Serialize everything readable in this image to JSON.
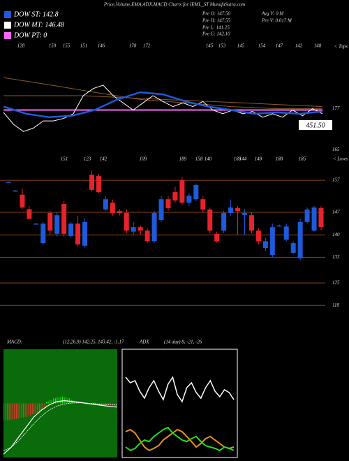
{
  "header": {
    "title": "Price,Volume,EMA,ADX,MACD Charts for IEML_ST MunafaSutra.com"
  },
  "legend": [
    {
      "label": "DOW ST: 142.8",
      "color": "#1e5adc"
    },
    {
      "label": "DOW MT: 146.48",
      "color": "#ffffff"
    },
    {
      "label": "DOW PT: 0",
      "color": "#ff66ff"
    }
  ],
  "info": [
    "Pre O: 147.50",
    "Avg V: 0 M",
    "Pre H: 147.55",
    "Pre V: 0.017 M",
    "Pre L: 141.25",
    "Pre C: 142.10"
  ],
  "chart_data": [
    {
      "type": "line",
      "annotation": "< Tops",
      "top_labels": [
        "128",
        "159",
        "155",
        "151",
        "146",
        "178",
        "172",
        "145",
        "153",
        "145",
        "154",
        "147",
        "142",
        "148"
      ],
      "value_label": "451.50",
      "ylim": [
        163.8,
        197.6
      ],
      "yticks": [
        177,
        165
      ],
      "series": [
        {
          "color": "#8b5a2b",
          "values": [
            186.1,
            184,
            181.8,
            179.7,
            178.7,
            177.6,
            177,
            177
          ]
        },
        {
          "color": "#8b5a2b",
          "values": [
            180.8,
            180.8,
            179.7,
            178.7,
            177.6
          ]
        },
        {
          "name": "DOW PT: 0",
          "color": "#ff66ff",
          "values": [
            176.6,
            176.6
          ]
        },
        {
          "name": "DOW MT: 146.48",
          "color": "#ffffff",
          "values": [
            175.9,
            172.4,
            170.3,
            171.3,
            173.4,
            173.4,
            174.1,
            175.5,
            180.8,
            182.9,
            183.9,
            180.8,
            178.7,
            176.6,
            178.7,
            180.8,
            179.1,
            177.6,
            178.7,
            177.6,
            179.1,
            176.6,
            175.5,
            176.6,
            175.5,
            176.2,
            174.5,
            175.5,
            174.5,
            176.6,
            174.9,
            177,
            175.5
          ]
        },
        {
          "name": "DOW ST: 142.8",
          "color": "#1e5adc",
          "values": [
            177.6,
            175.5,
            174.5,
            174.9,
            176.6,
            179.7,
            181.8,
            181.2,
            179.1,
            177.6,
            176.6,
            175.5,
            175.9,
            175.5,
            176.2
          ]
        }
      ]
    },
    {
      "type": "candlestick",
      "annotation": "< Lows",
      "low_labels": [
        "151",
        "123",
        "142",
        "109",
        "189",
        "158",
        "140",
        "188",
        "144",
        "148",
        "188",
        "185"
      ],
      "ylim": [
        108.7,
        164.2
      ],
      "yticks": [
        157,
        147,
        140,
        133,
        125,
        118
      ],
      "grid": true,
      "up_color": "#1e5adc",
      "down_color": "#e8222c",
      "grid_color": "#8b4513",
      "open": [
        156.5,
        153.8,
        152.5,
        148,
        143.5,
        137.4,
        146.8,
        140.3,
        149.6,
        139.6,
        143.5,
        136.6,
        158.7,
        158.3,
        147.9,
        150,
        147.4,
        146.8,
        141,
        142.4,
        141.3,
        138,
        144.6,
        151.1,
        153.3,
        157,
        150,
        151.1,
        151.1,
        147.9,
        140.3,
        141.3,
        146.8,
        148.3,
        146.2,
        146.1,
        141.3,
        135.9,
        133.7,
        142.9,
        138.5,
        134.4,
        132.7,
        144,
        141.3,
        148.3
      ],
      "high": [
        156.6,
        154,
        154.5,
        149,
        143.7,
        144,
        147.5,
        147,
        150.5,
        144,
        146,
        145,
        160,
        159,
        152,
        151,
        148,
        148,
        144,
        143,
        142,
        147.5,
        152,
        152,
        155,
        158,
        153,
        156,
        152,
        148.5,
        141,
        147.5,
        151,
        149,
        148,
        147,
        142,
        139,
        143.5,
        143.2,
        143.5,
        138,
        145,
        148.5,
        149,
        149
      ],
      "low": [
        156.3,
        153.6,
        148,
        145,
        143.3,
        137,
        140,
        139.5,
        139.5,
        139,
        136.5,
        136,
        153.5,
        153,
        147.5,
        146,
        146,
        140.5,
        140,
        140,
        137.5,
        137.5,
        144,
        147.5,
        150,
        149.5,
        149,
        150.5,
        147,
        140.5,
        137.5,
        140.5,
        146,
        140,
        140,
        140.5,
        137,
        135,
        133,
        142.6,
        138,
        134,
        132,
        143.5,
        141,
        141.5
      ],
      "close": [
        156.5,
        153.8,
        148.5,
        145,
        143.5,
        143.5,
        141.3,
        146.1,
        140.3,
        143.5,
        137,
        144,
        154,
        153.3,
        151.1,
        146.8,
        146.8,
        141.3,
        142.4,
        141.3,
        138,
        146.8,
        151.1,
        148.3,
        150.7,
        150,
        152.2,
        155.5,
        147.9,
        141.3,
        138,
        146.8,
        148.5,
        147.4,
        146.8,
        141.3,
        138,
        138,
        142.4,
        142.9,
        142.6,
        137.4,
        144,
        147.9,
        148.5,
        142.4
      ]
    },
    {
      "type": "macd",
      "title": "MACD:",
      "subtitle": "(12,26,9) 142.25, 143.42, -1.17",
      "ylim": [
        -16,
        16
      ],
      "up_color": "#22ee22",
      "down_color": "#ff3030",
      "background": "#0a6b0a",
      "line_color": "#ffffff",
      "histogram": [
        -5,
        -5,
        -4.8,
        -4.6,
        -4.4,
        -4.2,
        -4,
        -3.6,
        -3.2,
        -2.8,
        -2.2,
        -1.5,
        0.5,
        1,
        1.5,
        1.8,
        2,
        1.8,
        1.5,
        1,
        0.6,
        0.2,
        -0.2,
        -0.3,
        0.1,
        0.2,
        -0.1,
        -0.2,
        -0.3,
        -0.4,
        -0.5,
        -0.6
      ],
      "macd": [
        -15,
        -13,
        -10,
        -7,
        -4,
        -2,
        -0.5,
        0.5,
        0.8,
        0.6,
        0.3,
        0,
        -0.3,
        -0.6,
        -0.9,
        -1.1
      ],
      "signal": [
        -14,
        -13,
        -11,
        -8.5,
        -6,
        -3.8,
        -2,
        -0.8,
        -0.2,
        0.1,
        0.2,
        0.1,
        -0.1,
        -0.3,
        -0.4,
        -0.5
      ]
    },
    {
      "type": "adx",
      "title": "ADX",
      "subtitle": "(14 day) 8, -21, -26",
      "ylim": [
        0,
        100
      ],
      "series": [
        {
          "color": "#ffffff",
          "values": [
            74.2,
            69,
            71,
            61.3,
            54.8,
            64.5,
            71,
            61.3,
            53.5,
            67.7,
            74.2,
            58.1,
            51.6,
            64.5,
            69,
            60,
            54.8,
            64.5,
            71,
            61.3,
            56.1,
            62.6,
            60,
            53.5
          ]
        },
        {
          "color": "#e8901e",
          "values": [
            23.9,
            25.8,
            22.6,
            16.1,
            9.7,
            6.5,
            8.4,
            11,
            16.1,
            19.4,
            22.6,
            25.8,
            23.9,
            19.4,
            14.8,
            9.7,
            12.9,
            17.4,
            19.4,
            16.1,
            12.9,
            9.7,
            8.4,
            9.7
          ]
        },
        {
          "color": "#22dd22",
          "values": [
            9.7,
            6.5,
            8.4,
            12.9,
            16.1,
            14.8,
            19.4,
            22.6,
            25.8,
            27.7,
            22.6,
            19.4,
            16.1,
            14.8,
            17.4,
            19.4,
            14.8,
            11,
            9.7,
            8.4,
            6.5,
            9.7,
            8.4,
            6.5
          ]
        }
      ]
    }
  ]
}
